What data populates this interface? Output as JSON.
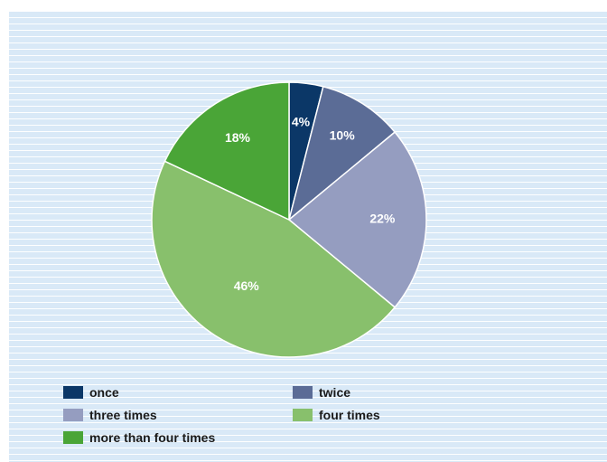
{
  "chart_data": {
    "type": "pie",
    "categories": [
      "once",
      "twice",
      "three times",
      "four times",
      "more than four times"
    ],
    "values": [
      4,
      10,
      22,
      46,
      18
    ],
    "labels": [
      "4%",
      "10%",
      "22%",
      "46%",
      "18%"
    ],
    "colors": [
      "#0b3767",
      "#5b6c96",
      "#959dc0",
      "#88c06c",
      "#4aa537"
    ],
    "title": "",
    "legend_position": "bottom"
  },
  "legend": {
    "items": [
      {
        "label": "once",
        "color": "#0b3767"
      },
      {
        "label": "twice",
        "color": "#5b6c96"
      },
      {
        "label": "three times",
        "color": "#959dc0"
      },
      {
        "label": "four times",
        "color": "#88c06c"
      },
      {
        "label": "more than four times",
        "color": "#4aa537"
      }
    ]
  }
}
